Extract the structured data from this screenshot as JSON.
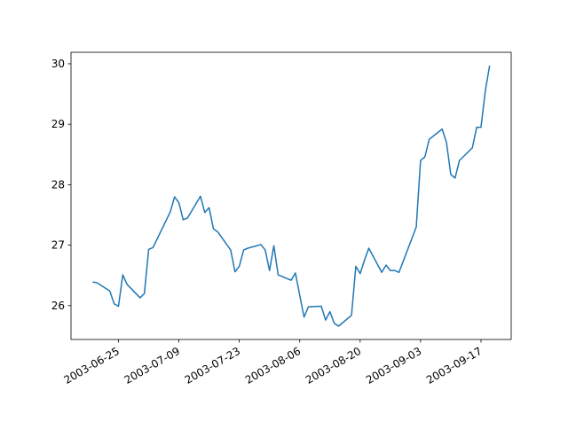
{
  "chart_data": {
    "type": "line",
    "x": [
      "2003-06-19",
      "2003-06-20",
      "2003-06-23",
      "2003-06-24",
      "2003-06-25",
      "2003-06-26",
      "2003-06-27",
      "2003-06-30",
      "2003-07-01",
      "2003-07-02",
      "2003-07-03",
      "2003-07-07",
      "2003-07-08",
      "2003-07-09",
      "2003-07-10",
      "2003-07-11",
      "2003-07-14",
      "2003-07-15",
      "2003-07-16",
      "2003-07-17",
      "2003-07-18",
      "2003-07-21",
      "2003-07-22",
      "2003-07-23",
      "2003-07-24",
      "2003-07-25",
      "2003-07-28",
      "2003-07-29",
      "2003-07-30",
      "2003-07-31",
      "2003-08-01",
      "2003-08-04",
      "2003-08-05",
      "2003-08-06",
      "2003-08-07",
      "2003-08-08",
      "2003-08-11",
      "2003-08-12",
      "2003-08-13",
      "2003-08-14",
      "2003-08-15",
      "2003-08-18",
      "2003-08-19",
      "2003-08-20",
      "2003-08-21",
      "2003-08-22",
      "2003-08-25",
      "2003-08-26",
      "2003-08-27",
      "2003-08-28",
      "2003-08-29",
      "2003-09-02",
      "2003-09-03",
      "2003-09-04",
      "2003-09-05",
      "2003-09-08",
      "2003-09-09",
      "2003-09-10",
      "2003-09-11",
      "2003-09-12",
      "2003-09-15",
      "2003-09-16",
      "2003-09-17",
      "2003-09-18",
      "2003-09-19"
    ],
    "values": [
      26.39,
      26.38,
      26.24,
      26.03,
      25.99,
      26.51,
      26.35,
      26.13,
      26.2,
      26.93,
      26.96,
      27.55,
      27.8,
      27.7,
      27.42,
      27.45,
      27.81,
      27.54,
      27.62,
      27.27,
      27.22,
      26.92,
      26.56,
      26.65,
      26.92,
      26.95,
      27.01,
      26.92,
      26.58,
      26.99,
      26.51,
      26.42,
      26.54,
      26.17,
      25.81,
      25.98,
      25.99,
      25.76,
      25.9,
      25.71,
      25.66,
      25.84,
      26.65,
      26.53,
      26.75,
      26.95,
      26.55,
      26.67,
      26.58,
      26.58,
      26.55,
      27.3,
      28.4,
      28.46,
      28.75,
      28.92,
      28.7,
      28.17,
      28.11,
      28.4,
      28.61,
      28.95,
      28.95,
      29.55,
      29.97
    ],
    "color": "#1f77b4",
    "xlim": [
      "2003-06-14",
      "2003-09-24"
    ],
    "xticks": [
      "2003-06-25",
      "2003-07-09",
      "2003-07-23",
      "2003-08-06",
      "2003-08-20",
      "2003-09-03",
      "2003-09-17"
    ],
    "ylim": [
      25.44,
      30.19
    ],
    "yticks": [
      26,
      27,
      28,
      29,
      30
    ]
  }
}
